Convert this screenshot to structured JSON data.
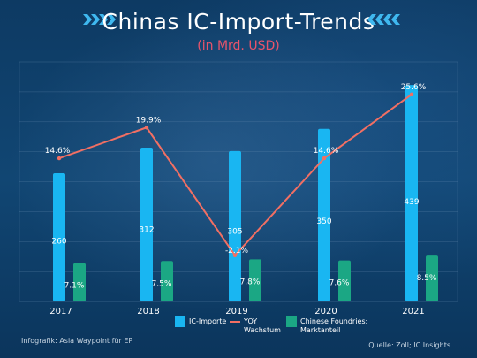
{
  "title": "Chinas IC-Import-Trends",
  "subtitle": "(in Mrd. USD)",
  "colors": {
    "bars": "#19b6f2",
    "line": "#f26f63",
    "foundry": "#1ba784",
    "subtitle": "#e8546b"
  },
  "chart_data": {
    "type": "bar",
    "categories": [
      "2017",
      "2018",
      "2019",
      "2020",
      "2021"
    ],
    "series": [
      {
        "name": "IC-Importe",
        "type": "bar",
        "values": [
          260,
          312,
          305,
          350,
          439
        ],
        "labels": [
          "260",
          "312",
          "305",
          "350",
          "439"
        ]
      },
      {
        "name": "YOY Wachstum",
        "type": "line",
        "values": [
          14.6,
          19.9,
          -2.1,
          14.6,
          25.6
        ],
        "labels": [
          "14.6%",
          "19.9%",
          "-2.1%",
          "14.6%",
          "25.6%"
        ]
      },
      {
        "name": "Chinese Foundries: Marktanteil",
        "type": "bar",
        "values": [
          7.1,
          7.5,
          7.8,
          7.6,
          8.5
        ],
        "labels": [
          "7.1%",
          "7.5%",
          "7.8%",
          "7.6%",
          "8.5%"
        ]
      }
    ],
    "grid": true
  },
  "legend": {
    "ic": "IC-Importe",
    "yoy_line1": "YOY",
    "yoy_line2": "Wachstum",
    "foundry_line1": "Chinese Foundries:",
    "foundry_line2": "Marktanteil"
  },
  "footer": {
    "source_left": "Infografik: Asia Waypoint für EP",
    "source_right": "Quelle: Zoll; IC Insights"
  }
}
